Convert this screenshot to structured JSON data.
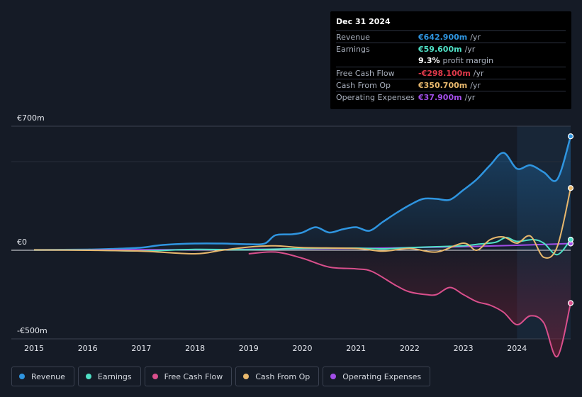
{
  "chart_data": {
    "type": "area",
    "title": "",
    "xlabel": "",
    "ylabel": "",
    "currency_unit": "EUR millions",
    "x_ticks": [
      "2015",
      "2016",
      "2017",
      "2018",
      "2019",
      "2020",
      "2021",
      "2022",
      "2023",
      "2024"
    ],
    "y_labels": {
      "top": "€700m",
      "zero": "€0",
      "bottom": "-€500m"
    },
    "ylim": [
      -500,
      700
    ],
    "xlim": [
      2015.0,
      2025.0
    ],
    "highlight_start": 2024.0,
    "series": [
      {
        "name": "Revenue",
        "color": "#2f95e0",
        "points": [
          [
            2015.0,
            2
          ],
          [
            2016.0,
            4
          ],
          [
            2016.5,
            8
          ],
          [
            2017.0,
            15
          ],
          [
            2017.4,
            30
          ],
          [
            2018.0,
            38
          ],
          [
            2018.5,
            38
          ],
          [
            2019.0,
            34
          ],
          [
            2019.3,
            38
          ],
          [
            2019.5,
            85
          ],
          [
            2019.8,
            90
          ],
          [
            2020.0,
            100
          ],
          [
            2020.25,
            130
          ],
          [
            2020.5,
            100
          ],
          [
            2020.75,
            118
          ],
          [
            2021.0,
            130
          ],
          [
            2021.25,
            110
          ],
          [
            2021.5,
            160
          ],
          [
            2021.75,
            210
          ],
          [
            2022.0,
            255
          ],
          [
            2022.25,
            290
          ],
          [
            2022.5,
            290
          ],
          [
            2022.75,
            285
          ],
          [
            2023.0,
            340
          ],
          [
            2023.25,
            400
          ],
          [
            2023.5,
            480
          ],
          [
            2023.75,
            550
          ],
          [
            2024.0,
            460
          ],
          [
            2024.25,
            480
          ],
          [
            2024.5,
            440
          ],
          [
            2024.75,
            400
          ],
          [
            2025.0,
            643
          ]
        ]
      },
      {
        "name": "Earnings",
        "color": "#4fe0c5",
        "points": [
          [
            2015.0,
            1
          ],
          [
            2016.0,
            1
          ],
          [
            2017.0,
            -4
          ],
          [
            2018.0,
            5
          ],
          [
            2019.0,
            3
          ],
          [
            2020.0,
            10
          ],
          [
            2021.0,
            12
          ],
          [
            2021.5,
            8
          ],
          [
            2022.0,
            15
          ],
          [
            2022.5,
            20
          ],
          [
            2023.0,
            25
          ],
          [
            2023.3,
            35
          ],
          [
            2023.6,
            45
          ],
          [
            2023.8,
            72
          ],
          [
            2024.0,
            50
          ],
          [
            2024.3,
            60
          ],
          [
            2024.5,
            40
          ],
          [
            2024.75,
            -25
          ],
          [
            2025.0,
            60
          ]
        ]
      },
      {
        "name": "Free Cash Flow",
        "color": "#d94f8c",
        "points": [
          [
            2019.0,
            -20
          ],
          [
            2019.5,
            -10
          ],
          [
            2020.0,
            -45
          ],
          [
            2020.5,
            -95
          ],
          [
            2021.0,
            -105
          ],
          [
            2021.3,
            -120
          ],
          [
            2021.75,
            -200
          ],
          [
            2022.0,
            -235
          ],
          [
            2022.3,
            -250
          ],
          [
            2022.5,
            -250
          ],
          [
            2022.75,
            -210
          ],
          [
            2023.0,
            -250
          ],
          [
            2023.25,
            -290
          ],
          [
            2023.5,
            -310
          ],
          [
            2023.75,
            -350
          ],
          [
            2024.0,
            -420
          ],
          [
            2024.25,
            -370
          ],
          [
            2024.5,
            -410
          ],
          [
            2024.75,
            -600
          ],
          [
            2025.0,
            -298
          ]
        ]
      },
      {
        "name": "Cash From Op",
        "color": "#e8b86d",
        "points": [
          [
            2015.0,
            2
          ],
          [
            2016.0,
            0
          ],
          [
            2017.0,
            -5
          ],
          [
            2018.0,
            -20
          ],
          [
            2018.5,
            0
          ],
          [
            2019.0,
            18
          ],
          [
            2019.5,
            25
          ],
          [
            2020.0,
            15
          ],
          [
            2021.0,
            10
          ],
          [
            2021.5,
            -5
          ],
          [
            2022.0,
            10
          ],
          [
            2022.5,
            -10
          ],
          [
            2023.0,
            40
          ],
          [
            2023.25,
            0
          ],
          [
            2023.5,
            60
          ],
          [
            2023.75,
            75
          ],
          [
            2024.0,
            40
          ],
          [
            2024.25,
            80
          ],
          [
            2024.5,
            -40
          ],
          [
            2024.75,
            20
          ],
          [
            2025.0,
            351
          ]
        ]
      },
      {
        "name": "Operating Expenses",
        "color": "#a24ee8",
        "points": [
          [
            2015.0,
            1
          ],
          [
            2016.0,
            2
          ],
          [
            2017.0,
            3
          ],
          [
            2018.0,
            3
          ],
          [
            2019.0,
            5
          ],
          [
            2020.0,
            8
          ],
          [
            2021.0,
            10
          ],
          [
            2022.0,
            15
          ],
          [
            2023.0,
            20
          ],
          [
            2024.0,
            28
          ],
          [
            2025.0,
            38
          ]
        ]
      }
    ]
  },
  "tooltip": {
    "date": "Dec 31 2024",
    "rows": [
      {
        "label": "Revenue",
        "value": "€642.900m",
        "unit": "/yr",
        "color": "#2f95e0"
      },
      {
        "label": "Earnings",
        "value": "€59.600m",
        "unit": "/yr",
        "color": "#4fe0c5"
      },
      {
        "label": "",
        "value": "9.3%",
        "unit": "profit margin",
        "color": "#ffffff"
      },
      {
        "label": "Free Cash Flow",
        "value": "-€298.100m",
        "unit": "/yr",
        "color": "#e0394a"
      },
      {
        "label": "Cash From Op",
        "value": "€350.700m",
        "unit": "/yr",
        "color": "#e8b86d"
      },
      {
        "label": "Operating Expenses",
        "value": "€37.900m",
        "unit": "/yr",
        "color": "#a24ee8"
      }
    ]
  },
  "legend": [
    {
      "label": "Revenue",
      "color": "#2f95e0"
    },
    {
      "label": "Earnings",
      "color": "#4fe0c5"
    },
    {
      "label": "Free Cash Flow",
      "color": "#d94f8c"
    },
    {
      "label": "Cash From Op",
      "color": "#e8b86d"
    },
    {
      "label": "Operating Expenses",
      "color": "#a24ee8"
    }
  ]
}
